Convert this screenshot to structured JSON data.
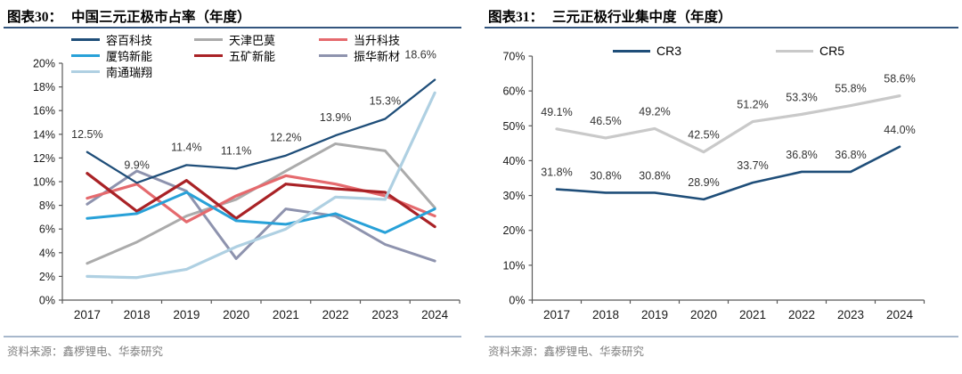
{
  "panels": [
    {
      "title_prefix": "图表30：",
      "title": "中国三元正极市占率（年度）",
      "source": "资料来源：鑫椤锂电、华泰研究"
    },
    {
      "title_prefix": "图表31：",
      "title": "三元正极行业集中度（年度）",
      "source": "资料来源：鑫椤锂电、华泰研究"
    }
  ],
  "colors": {
    "title_rule": "#33557E",
    "source_rule": "#A8B8CC",
    "axis": "#595959",
    "data_label": "#333333",
    "tick_label": "#1A1A1A"
  },
  "chart_data": [
    {
      "type": "line",
      "title": "中国三元正极市占率（年度）",
      "categories": [
        "2017",
        "2018",
        "2019",
        "2020",
        "2021",
        "2022",
        "2023",
        "2024"
      ],
      "series": [
        {
          "name": "容百科技",
          "color": "#1F4E79",
          "width": 2.3,
          "labeled": true,
          "values": [
            12.5,
            9.9,
            11.4,
            11.1,
            12.2,
            13.9,
            15.3,
            18.6
          ]
        },
        {
          "name": "天津巴莫",
          "color": "#ABABAB",
          "width": 3,
          "values": [
            3.1,
            4.9,
            7.1,
            8.5,
            10.9,
            13.2,
            12.6,
            7.8
          ]
        },
        {
          "name": "当升科技",
          "color": "#E56A6E",
          "width": 3.2,
          "values": [
            8.6,
            9.8,
            6.6,
            8.8,
            10.5,
            9.8,
            8.8,
            7.1
          ]
        },
        {
          "name": "厦钨新能",
          "color": "#28A1D8",
          "width": 3,
          "values": [
            6.9,
            7.3,
            9.1,
            6.7,
            6.4,
            7.3,
            5.7,
            7.7
          ]
        },
        {
          "name": "五矿新能",
          "color": "#A92226",
          "width": 3.2,
          "values": [
            10.7,
            7.5,
            10.1,
            6.9,
            9.8,
            9.4,
            9.1,
            6.2
          ]
        },
        {
          "name": "振华新材",
          "color": "#8E93AE",
          "width": 3,
          "values": [
            8.1,
            10.9,
            9.2,
            3.5,
            7.7,
            7.1,
            4.7,
            3.3
          ]
        },
        {
          "name": "南通瑞翔",
          "color": "#AFD0E2",
          "width": 3.2,
          "values": [
            2.0,
            1.9,
            2.6,
            4.5,
            6.0,
            8.7,
            8.5,
            17.5
          ]
        }
      ],
      "ylim": [
        0,
        20
      ],
      "ytick_step": 2,
      "yticks": [
        "0%",
        "2%",
        "4%",
        "6%",
        "8%",
        "10%",
        "12%",
        "14%",
        "16%",
        "18%",
        "20%"
      ],
      "tick_suffix": "%",
      "label_suffix": "%",
      "grid": false,
      "legend_position": "top"
    },
    {
      "type": "line",
      "title": "三元正极行业集中度（年度）",
      "categories": [
        "2017",
        "2018",
        "2019",
        "2020",
        "2021",
        "2022",
        "2023",
        "2024"
      ],
      "series": [
        {
          "name": "CR3",
          "color": "#1F4E79",
          "width": 2.6,
          "labeled": true,
          "values": [
            31.8,
            30.8,
            30.8,
            28.9,
            33.7,
            36.8,
            36.8,
            44.0
          ]
        },
        {
          "name": "CR5",
          "color": "#C9C9C9",
          "width": 3.2,
          "labeled": true,
          "values": [
            49.1,
            46.5,
            49.2,
            42.5,
            51.2,
            53.3,
            55.8,
            58.6
          ]
        }
      ],
      "ylim": [
        0,
        70
      ],
      "ytick_step": 10,
      "yticks": [
        "0%",
        "10%",
        "20%",
        "30%",
        "40%",
        "50%",
        "60%",
        "70%"
      ],
      "tick_suffix": "%",
      "label_suffix": "%",
      "grid": false,
      "legend_position": "top"
    }
  ]
}
